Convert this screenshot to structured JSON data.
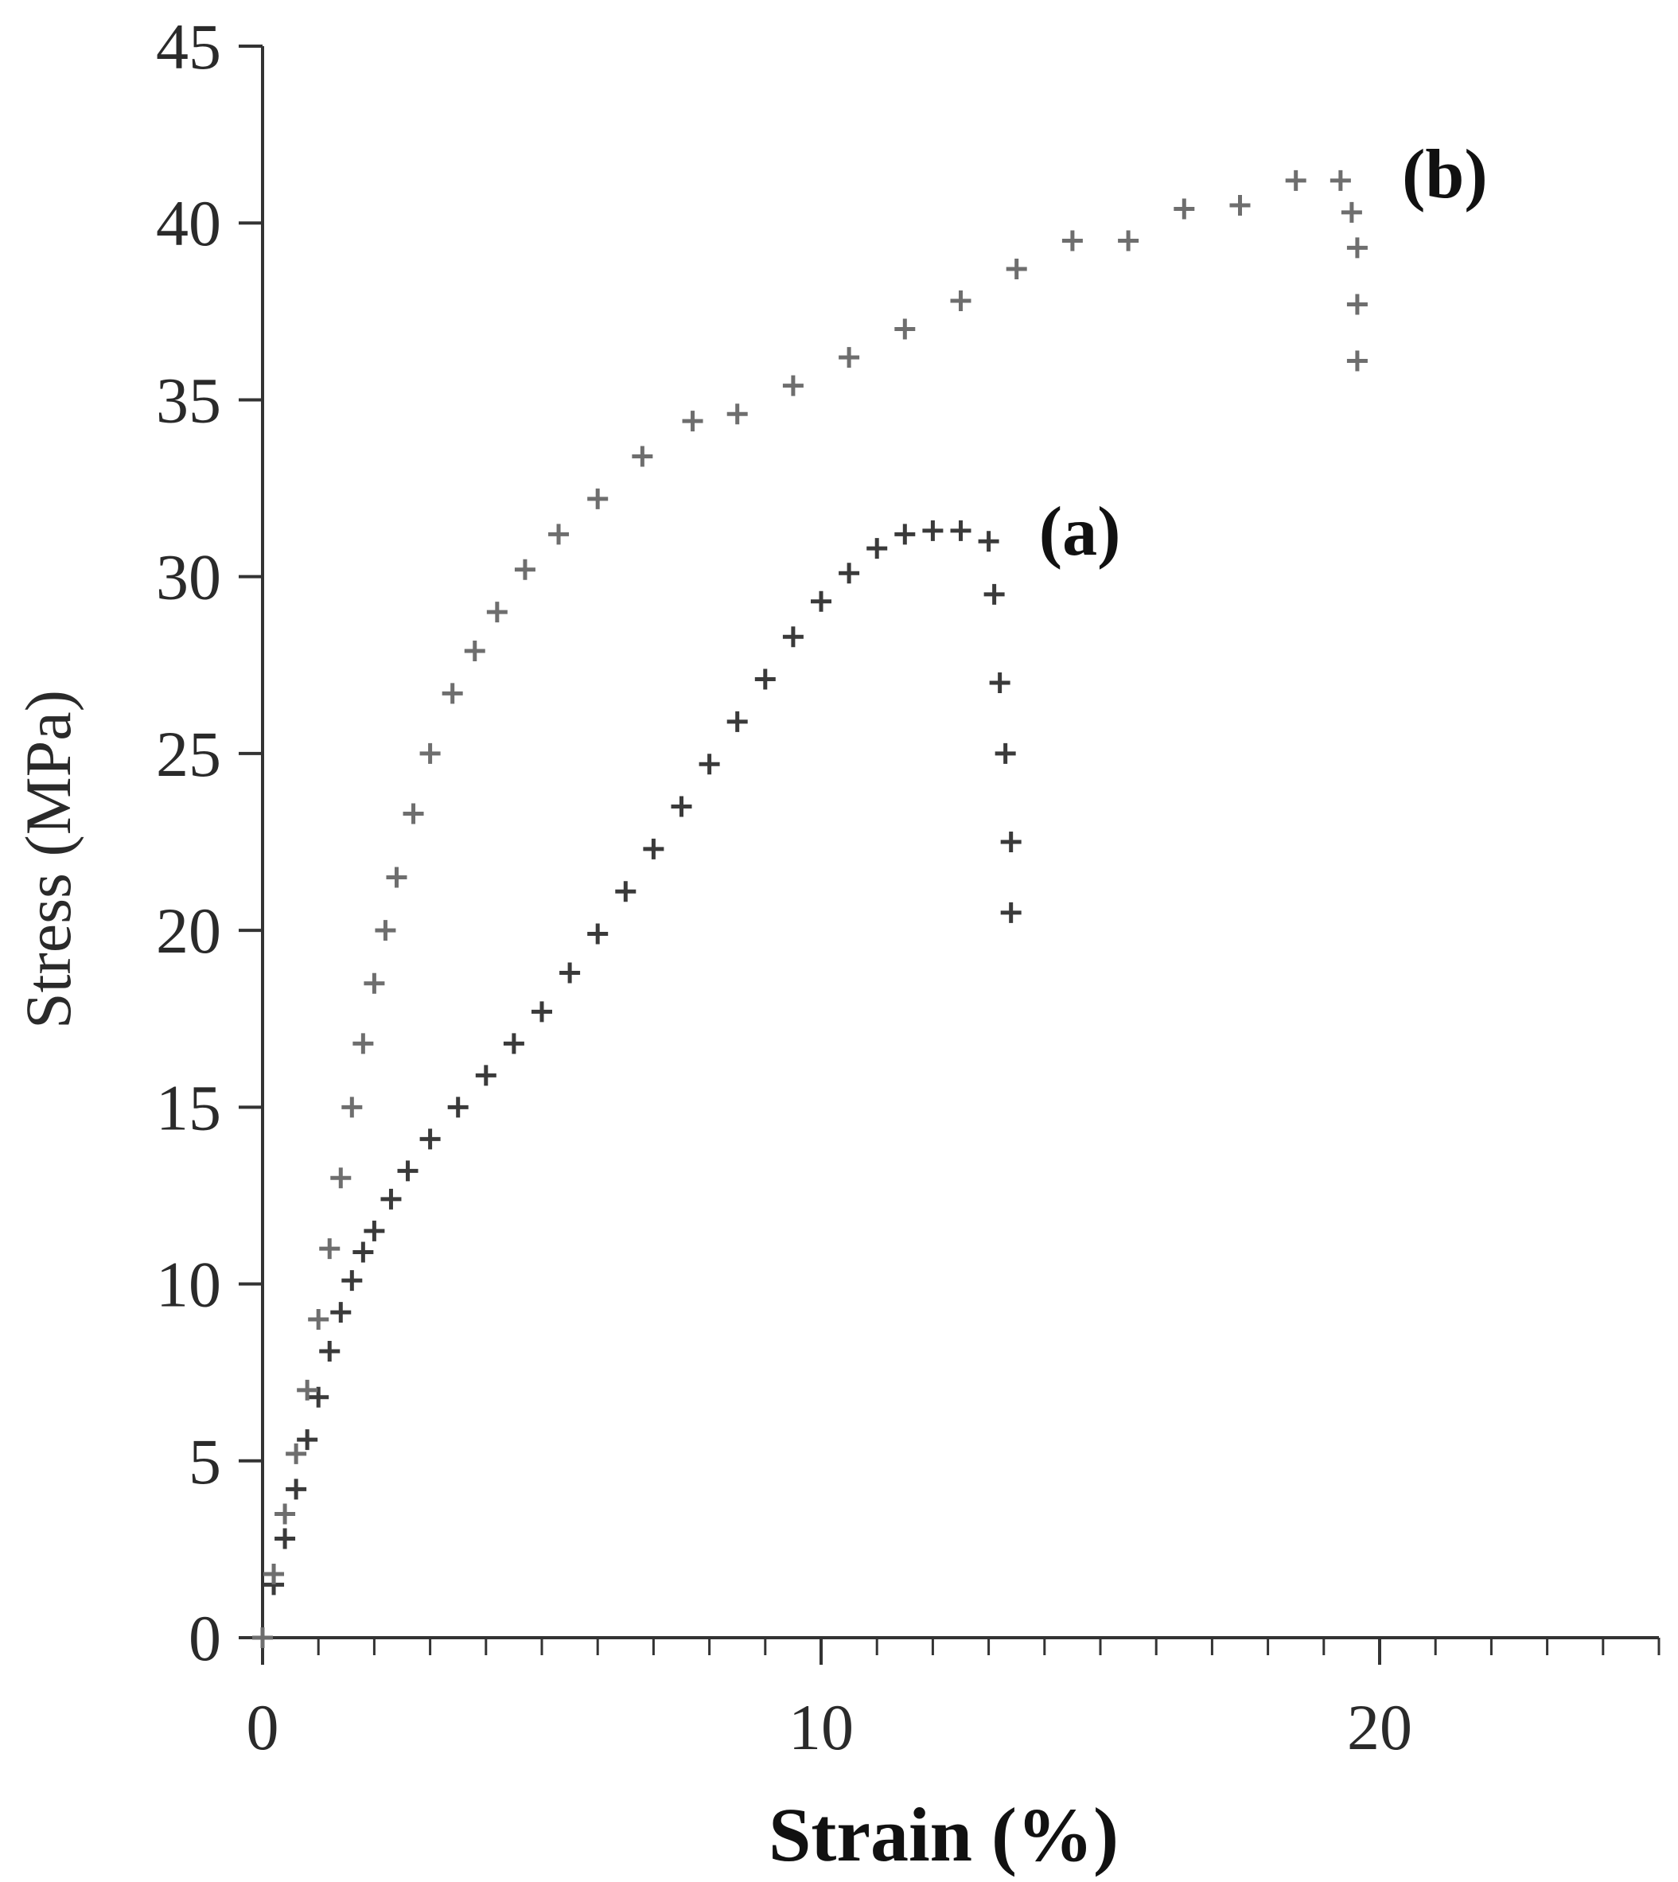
{
  "chart_data": {
    "type": "scatter",
    "title": "",
    "xlabel": "Strain (%)",
    "ylabel": "Stress (MPa)",
    "xlim": [
      0,
      25
    ],
    "ylim": [
      0,
      45
    ],
    "x_ticks": [
      0,
      10,
      20
    ],
    "x_tick_labels": [
      "0",
      "10",
      "20"
    ],
    "x_minor_step": 1,
    "y_ticks": [
      0,
      5,
      10,
      15,
      20,
      25,
      30,
      35,
      40,
      45
    ],
    "y_tick_labels": [
      "0",
      "5",
      "10",
      "15",
      "20",
      "25",
      "30",
      "35",
      "40",
      "45"
    ],
    "grid": false,
    "legend": "none",
    "marker": "+",
    "colors": {
      "series_a": "#3a3a3a",
      "series_b": "#6e6e6e",
      "axis": "#333333"
    },
    "series": [
      {
        "name": "(a)",
        "x": [
          0.0,
          0.2,
          0.4,
          0.6,
          0.8,
          1.0,
          1.2,
          1.4,
          1.6,
          1.8,
          2.0,
          2.3,
          2.6,
          3.0,
          3.5,
          4.0,
          4.5,
          5.0,
          5.5,
          6.0,
          6.5,
          7.0,
          7.5,
          8.0,
          8.5,
          9.0,
          9.5,
          10.0,
          10.5,
          11.0,
          11.5,
          12.0,
          12.5,
          13.0,
          13.1,
          13.2,
          13.3,
          13.4,
          13.4
        ],
        "y": [
          0.0,
          1.5,
          2.8,
          4.2,
          5.6,
          6.8,
          8.1,
          9.2,
          10.1,
          10.9,
          11.5,
          12.4,
          13.2,
          14.1,
          15.0,
          15.9,
          16.8,
          17.7,
          18.8,
          19.9,
          21.1,
          22.3,
          23.5,
          24.7,
          25.9,
          27.1,
          28.3,
          29.3,
          30.1,
          30.8,
          31.2,
          31.3,
          31.3,
          31.0,
          29.5,
          27.0,
          25.0,
          22.5,
          20.5
        ]
      },
      {
        "name": "(b)",
        "x": [
          0.0,
          0.2,
          0.4,
          0.6,
          0.8,
          1.0,
          1.2,
          1.4,
          1.6,
          1.8,
          2.0,
          2.2,
          2.4,
          2.7,
          3.0,
          3.4,
          3.8,
          4.2,
          4.7,
          5.3,
          6.0,
          6.8,
          7.7,
          8.5,
          9.5,
          10.5,
          11.5,
          12.5,
          13.5,
          14.5,
          15.5,
          16.5,
          17.5,
          18.5,
          19.3,
          19.5,
          19.6,
          19.6,
          19.6
        ],
        "y": [
          0.0,
          1.8,
          3.5,
          5.2,
          7.0,
          9.0,
          11.0,
          13.0,
          15.0,
          16.8,
          18.5,
          20.0,
          21.5,
          23.3,
          25.0,
          26.7,
          27.9,
          29.0,
          30.2,
          31.2,
          32.2,
          33.4,
          34.4,
          34.6,
          35.4,
          36.2,
          37.0,
          37.8,
          38.7,
          39.5,
          39.5,
          40.4,
          40.5,
          41.2,
          41.2,
          40.3,
          39.3,
          37.7,
          36.1
        ]
      }
    ],
    "annotations": [
      {
        "text": "(a)",
        "x": 13.9,
        "y": 31.3
      },
      {
        "text": "(b)",
        "x": 20.4,
        "y": 41.4
      }
    ]
  }
}
